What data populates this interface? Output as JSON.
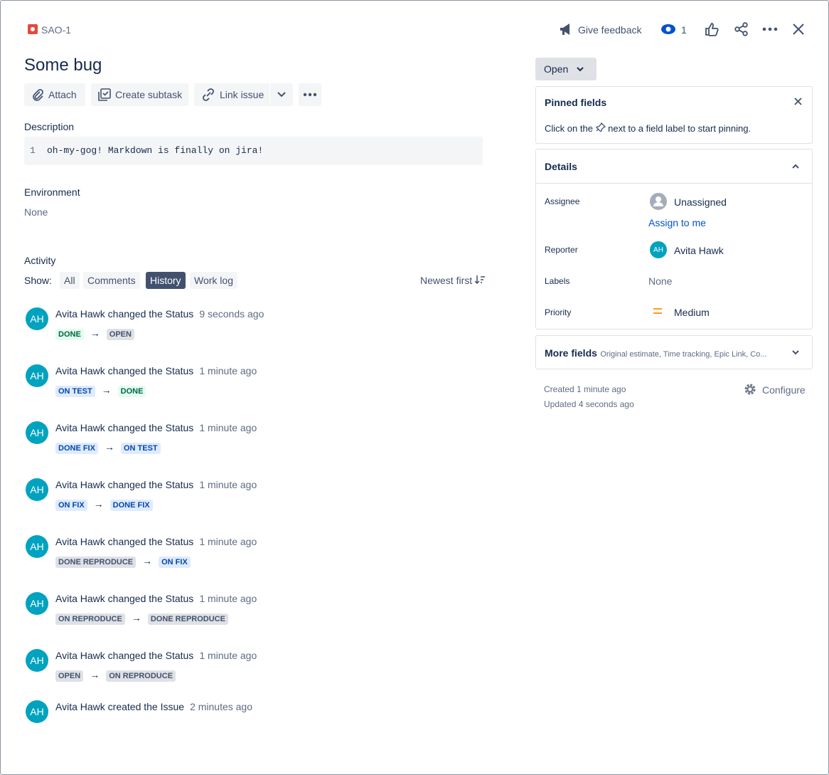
{
  "header": {
    "issue_key": "SAO-1",
    "feedback": "Give feedback",
    "watchers": 1
  },
  "title": "Some bug",
  "toolbar": {
    "attach": "Attach",
    "create_subtask": "Create subtask",
    "link_issue": "Link issue"
  },
  "description": {
    "label": "Description",
    "line_number": 1,
    "text": "oh-my-gog! Markdown is finally on jira!"
  },
  "environment": {
    "label": "Environment",
    "value": "None"
  },
  "activity": {
    "label": "Activity",
    "show": "Show:",
    "tabs": [
      "All",
      "Comments",
      "History",
      "Work log"
    ],
    "active_tab": 2,
    "sort": "Newest first",
    "arrow": "→",
    "entries": [
      {
        "initials": "AH",
        "text": "Avita Hawk changed the Status",
        "time": "9 seconds ago",
        "from": {
          "text": "DONE",
          "tone": "green"
        },
        "to": {
          "text": "OPEN",
          "tone": "gray"
        }
      },
      {
        "initials": "AH",
        "text": "Avita Hawk changed the Status",
        "time": "1 minute ago",
        "from": {
          "text": "ON TEST",
          "tone": "blue"
        },
        "to": {
          "text": "DONE",
          "tone": "green"
        }
      },
      {
        "initials": "AH",
        "text": "Avita Hawk changed the Status",
        "time": "1 minute ago",
        "from": {
          "text": "DONE FIX",
          "tone": "blue"
        },
        "to": {
          "text": "ON TEST",
          "tone": "blue"
        }
      },
      {
        "initials": "AH",
        "text": "Avita Hawk changed the Status",
        "time": "1 minute ago",
        "from": {
          "text": "ON FIX",
          "tone": "blue"
        },
        "to": {
          "text": "DONE FIX",
          "tone": "blue"
        }
      },
      {
        "initials": "AH",
        "text": "Avita Hawk changed the Status",
        "time": "1 minute ago",
        "from": {
          "text": "DONE REPRODUCE",
          "tone": "gray"
        },
        "to": {
          "text": "ON FIX",
          "tone": "blue"
        }
      },
      {
        "initials": "AH",
        "text": "Avita Hawk changed the Status",
        "time": "1 minute ago",
        "from": {
          "text": "ON REPRODUCE",
          "tone": "gray"
        },
        "to": {
          "text": "DONE REPRODUCE",
          "tone": "gray"
        }
      },
      {
        "initials": "AH",
        "text": "Avita Hawk changed the Status",
        "time": "1 minute ago",
        "from": {
          "text": "OPEN",
          "tone": "gray"
        },
        "to": {
          "text": "ON REPRODUCE",
          "tone": "gray"
        }
      },
      {
        "initials": "AH",
        "text": "Avita Hawk created the Issue",
        "time": "2 minutes ago"
      }
    ]
  },
  "sidebar": {
    "status": "Open",
    "pinned": {
      "title": "Pinned fields",
      "hint_before": "Click on the",
      "hint_after": "next to a field label to start pinning."
    },
    "details": {
      "title": "Details",
      "assignee": {
        "label": "Assignee",
        "value": "Unassigned",
        "action": "Assign to me"
      },
      "reporter": {
        "label": "Reporter",
        "initials": "AH",
        "value": "Avita Hawk"
      },
      "labels": {
        "label": "Labels",
        "value": "None"
      },
      "priority": {
        "label": "Priority",
        "value": "Medium"
      }
    },
    "more_fields": {
      "title": "More fields",
      "summary": "Original estimate, Time tracking, Epic Link, Co..."
    },
    "created": "Created 1 minute ago",
    "updated": "Updated 4 seconds ago",
    "configure": "Configure"
  }
}
